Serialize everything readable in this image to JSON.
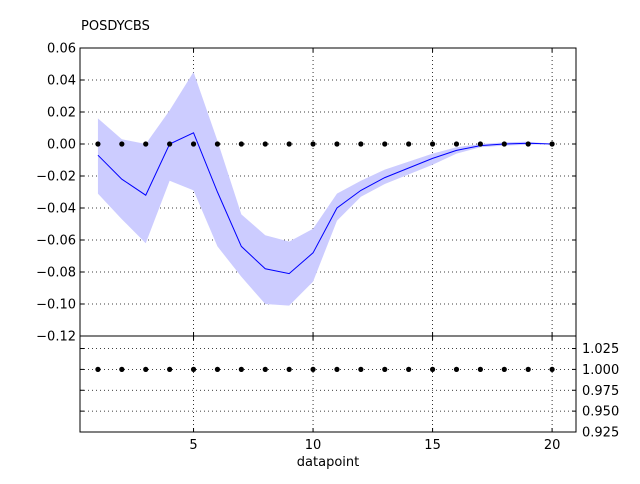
{
  "chart_data": [
    {
      "type": "line",
      "title": "POSDYCBS",
      "xlabel": "",
      "ylabel": "",
      "xlim": [
        0.25,
        21
      ],
      "ylim": [
        -0.12,
        0.06
      ],
      "x_ticks": [
        5,
        10,
        15,
        20
      ],
      "y_ticks": [
        -0.12,
        -0.1,
        -0.08,
        -0.06,
        -0.04,
        -0.02,
        0.0,
        0.02,
        0.04,
        0.06
      ],
      "y_tick_labels": [
        "−0.12",
        "−0.10",
        "−0.08",
        "−0.06",
        "−0.04",
        "−0.02",
        "0.00",
        "0.02",
        "0.04",
        "0.06"
      ],
      "grid": true,
      "x": [
        1,
        2,
        3,
        4,
        5,
        6,
        7,
        8,
        9,
        10,
        11,
        12,
        13,
        14,
        15,
        16,
        17,
        18,
        19,
        20
      ],
      "series": [
        {
          "role": "mean",
          "color": "#0000ff",
          "values": [
            -0.007,
            -0.022,
            -0.032,
            0.0,
            0.007,
            -0.03,
            -0.064,
            -0.078,
            -0.081,
            -0.068,
            -0.04,
            -0.029,
            -0.021,
            -0.015,
            -0.009,
            -0.004,
            -0.001,
            0.0,
            0.0005,
            0.0
          ]
        },
        {
          "role": "band_upper",
          "color": "#ccccff",
          "values": [
            0.016,
            0.003,
            0.0,
            0.021,
            0.045,
            0.002,
            -0.044,
            -0.057,
            -0.061,
            -0.053,
            -0.031,
            -0.023,
            -0.016,
            -0.011,
            -0.006,
            -0.002,
            0.0,
            0.001,
            0.0015,
            0.0
          ]
        },
        {
          "role": "band_lower",
          "color": "#ccccff",
          "values": [
            -0.031,
            -0.047,
            -0.062,
            -0.023,
            -0.029,
            -0.064,
            -0.083,
            -0.1,
            -0.101,
            -0.086,
            -0.048,
            -0.033,
            -0.025,
            -0.019,
            -0.013,
            -0.006,
            -0.002,
            -0.001,
            -0.0005,
            0.0
          ]
        },
        {
          "role": "datapoints",
          "color": "#000000",
          "values": [
            0,
            0,
            0,
            0,
            0,
            0,
            0,
            0,
            0,
            0,
            0,
            0,
            0,
            0,
            0,
            0,
            0,
            0,
            0,
            0
          ]
        }
      ]
    },
    {
      "type": "scatter",
      "title": "",
      "xlabel": "datapoint",
      "ylabel": "",
      "xlim": [
        0.25,
        21
      ],
      "ylim": [
        0.925,
        1.04
      ],
      "x_ticks": [
        5,
        10,
        15,
        20
      ],
      "y_ticks": [
        0.925,
        0.95,
        0.975,
        1.0,
        1.025
      ],
      "y_tick_labels": [
        "0.925",
        "0.950",
        "0.975",
        "1.000",
        "1.025"
      ],
      "y_axis_side": "right",
      "grid": true,
      "x": [
        1,
        2,
        3,
        4,
        5,
        6,
        7,
        8,
        9,
        10,
        11,
        12,
        13,
        14,
        15,
        16,
        17,
        18,
        19,
        20
      ],
      "series": [
        {
          "role": "datapoints",
          "color": "#000000",
          "values": [
            1,
            1,
            1,
            1,
            1,
            1,
            1,
            1,
            1,
            1,
            1,
            1,
            1,
            1,
            1,
            1,
            1,
            1,
            1,
            1
          ]
        }
      ]
    }
  ]
}
